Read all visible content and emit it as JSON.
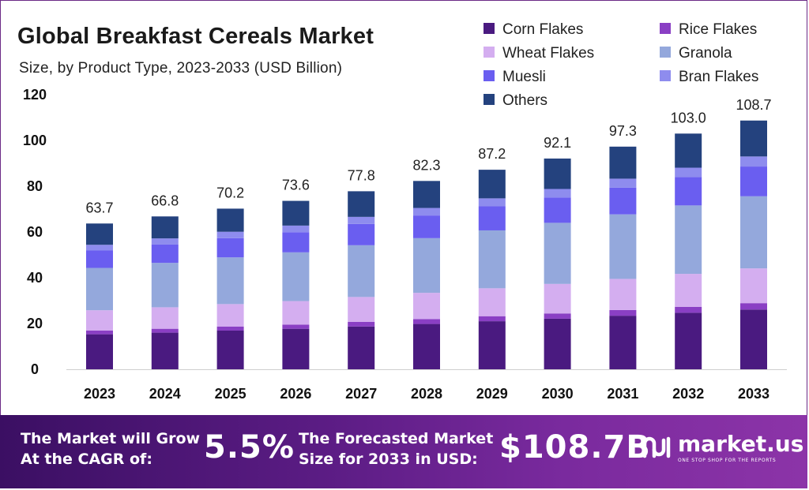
{
  "chart_data": {
    "type": "stacked-bar",
    "title": "Global Breakfast Cereals Market",
    "subtitle": "Size, by Product Type, 2023-2033 (USD Billion)",
    "categories": [
      "2023",
      "2024",
      "2025",
      "2026",
      "2027",
      "2028",
      "2029",
      "2030",
      "2031",
      "2032",
      "2033"
    ],
    "totals": [
      63.7,
      66.8,
      70.2,
      73.6,
      77.8,
      82.3,
      87.2,
      92.1,
      97.3,
      103.0,
      108.7
    ],
    "total_labels": [
      "63.7",
      "66.8",
      "70.2",
      "73.6",
      "77.8",
      "82.3",
      "87.2",
      "92.1",
      "97.3",
      "103.0",
      "108.7"
    ],
    "ylim": [
      0,
      120
    ],
    "yticks": [
      0,
      20,
      40,
      60,
      80,
      100,
      120
    ],
    "series": [
      {
        "name": "Corn Flakes",
        "color": "#4a1a80",
        "values": [
          15.3,
          16.0,
          16.9,
          17.7,
          18.7,
          19.8,
          21.0,
          22.1,
          23.4,
          24.7,
          26.1
        ]
      },
      {
        "name": "Rice Flakes",
        "color": "#8a3fc4",
        "values": [
          1.6,
          1.7,
          1.8,
          1.8,
          2.0,
          2.1,
          2.2,
          2.3,
          2.5,
          2.6,
          2.8
        ]
      },
      {
        "name": "Wheat Flakes",
        "color": "#d4aef0",
        "values": [
          8.9,
          9.4,
          9.8,
          10.3,
          10.9,
          11.5,
          12.2,
          12.9,
          13.6,
          14.4,
          15.2
        ]
      },
      {
        "name": "Granola",
        "color": "#94a8dc",
        "values": [
          18.5,
          19.4,
          20.4,
          21.3,
          22.6,
          23.9,
          25.3,
          26.7,
          28.2,
          29.9,
          31.5
        ]
      },
      {
        "name": "Muesli",
        "color": "#6a5ef0",
        "values": [
          7.6,
          8.0,
          8.4,
          8.8,
          9.3,
          9.9,
          10.5,
          11.1,
          11.7,
          12.4,
          13.0
        ]
      },
      {
        "name": "Bran Flakes",
        "color": "#8e8cee",
        "values": [
          2.5,
          2.7,
          2.8,
          2.9,
          3.1,
          3.3,
          3.5,
          3.7,
          3.9,
          4.1,
          4.4
        ]
      },
      {
        "name": "Others",
        "color": "#24427e",
        "values": [
          9.3,
          9.6,
          10.1,
          10.8,
          11.2,
          11.8,
          12.5,
          13.3,
          14.0,
          14.9,
          15.7
        ]
      }
    ]
  },
  "footer": {
    "cagr_text_line1": "The Market will Grow",
    "cagr_text_line2": "At the CAGR of:",
    "cagr_value": "5.5%",
    "forecast_text_line1": "The Forecasted Market",
    "forecast_text_line2": "Size for 2033 in USD:",
    "forecast_value": "$108.7B",
    "brand_name": "market.us",
    "brand_tagline": "ONE STOP SHOP FOR THE REPORTS"
  },
  "colors": {
    "footer_start": "#3b0f63",
    "footer_end": "#8c34a8",
    "frame": "#6b2a86"
  }
}
